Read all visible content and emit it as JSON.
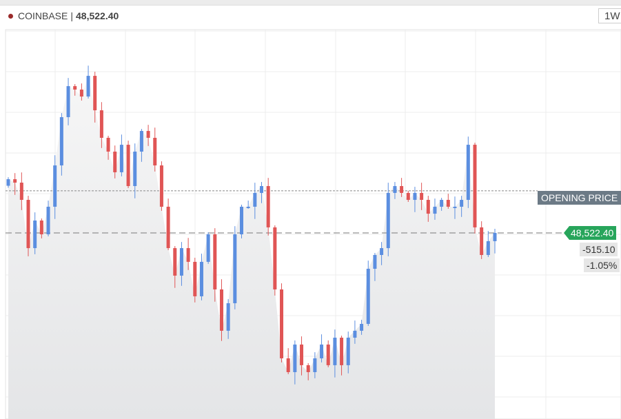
{
  "header": {
    "exchange": "COINBASE",
    "separator": "|",
    "last_price": "48,522.40",
    "timeframe": "1W"
  },
  "colors": {
    "up": "#5b8ee0",
    "down": "#e05555",
    "opening_label": "#6c7a86",
    "last_label": "#27a55b",
    "marker_dot": "#9a2a2a"
  },
  "chart_data": {
    "type": "candlestick",
    "opening_price": 49037.5,
    "opening_label": "OPENING PRICE",
    "last_price_label": "48,522.40",
    "change_label": "-515.10",
    "change_pct_label": "-1.05%",
    "ylim": [
      46243,
      51375
    ],
    "grid": true,
    "first_open": 49100,
    "close": [
      49180,
      49138,
      48927,
      48336,
      48674,
      48505,
      48843,
      49349,
      49940,
      50320,
      50278,
      50193,
      50446,
      50024,
      49687,
      49518,
      49265,
      49602,
      49096,
      49518,
      49771,
      49687,
      49349,
      48843,
      48336,
      47999,
      48336,
      48168,
      47746,
      48168,
      48505,
      47830,
      47324,
      47661,
      48505,
      48843,
      48843,
      49012,
      49096,
      48590,
      47830,
      46986,
      46817,
      47155,
      46902,
      46817,
      46986,
      47155,
      46902,
      47239,
      46902,
      47239,
      47324,
      47408,
      48083,
      48252,
      48336,
      49012,
      49096,
      49012,
      48927,
      49012,
      48927,
      48758,
      48843,
      48927,
      48843,
      48843,
      48927,
      49602,
      48590,
      48252,
      48421,
      48522.4
    ]
  }
}
